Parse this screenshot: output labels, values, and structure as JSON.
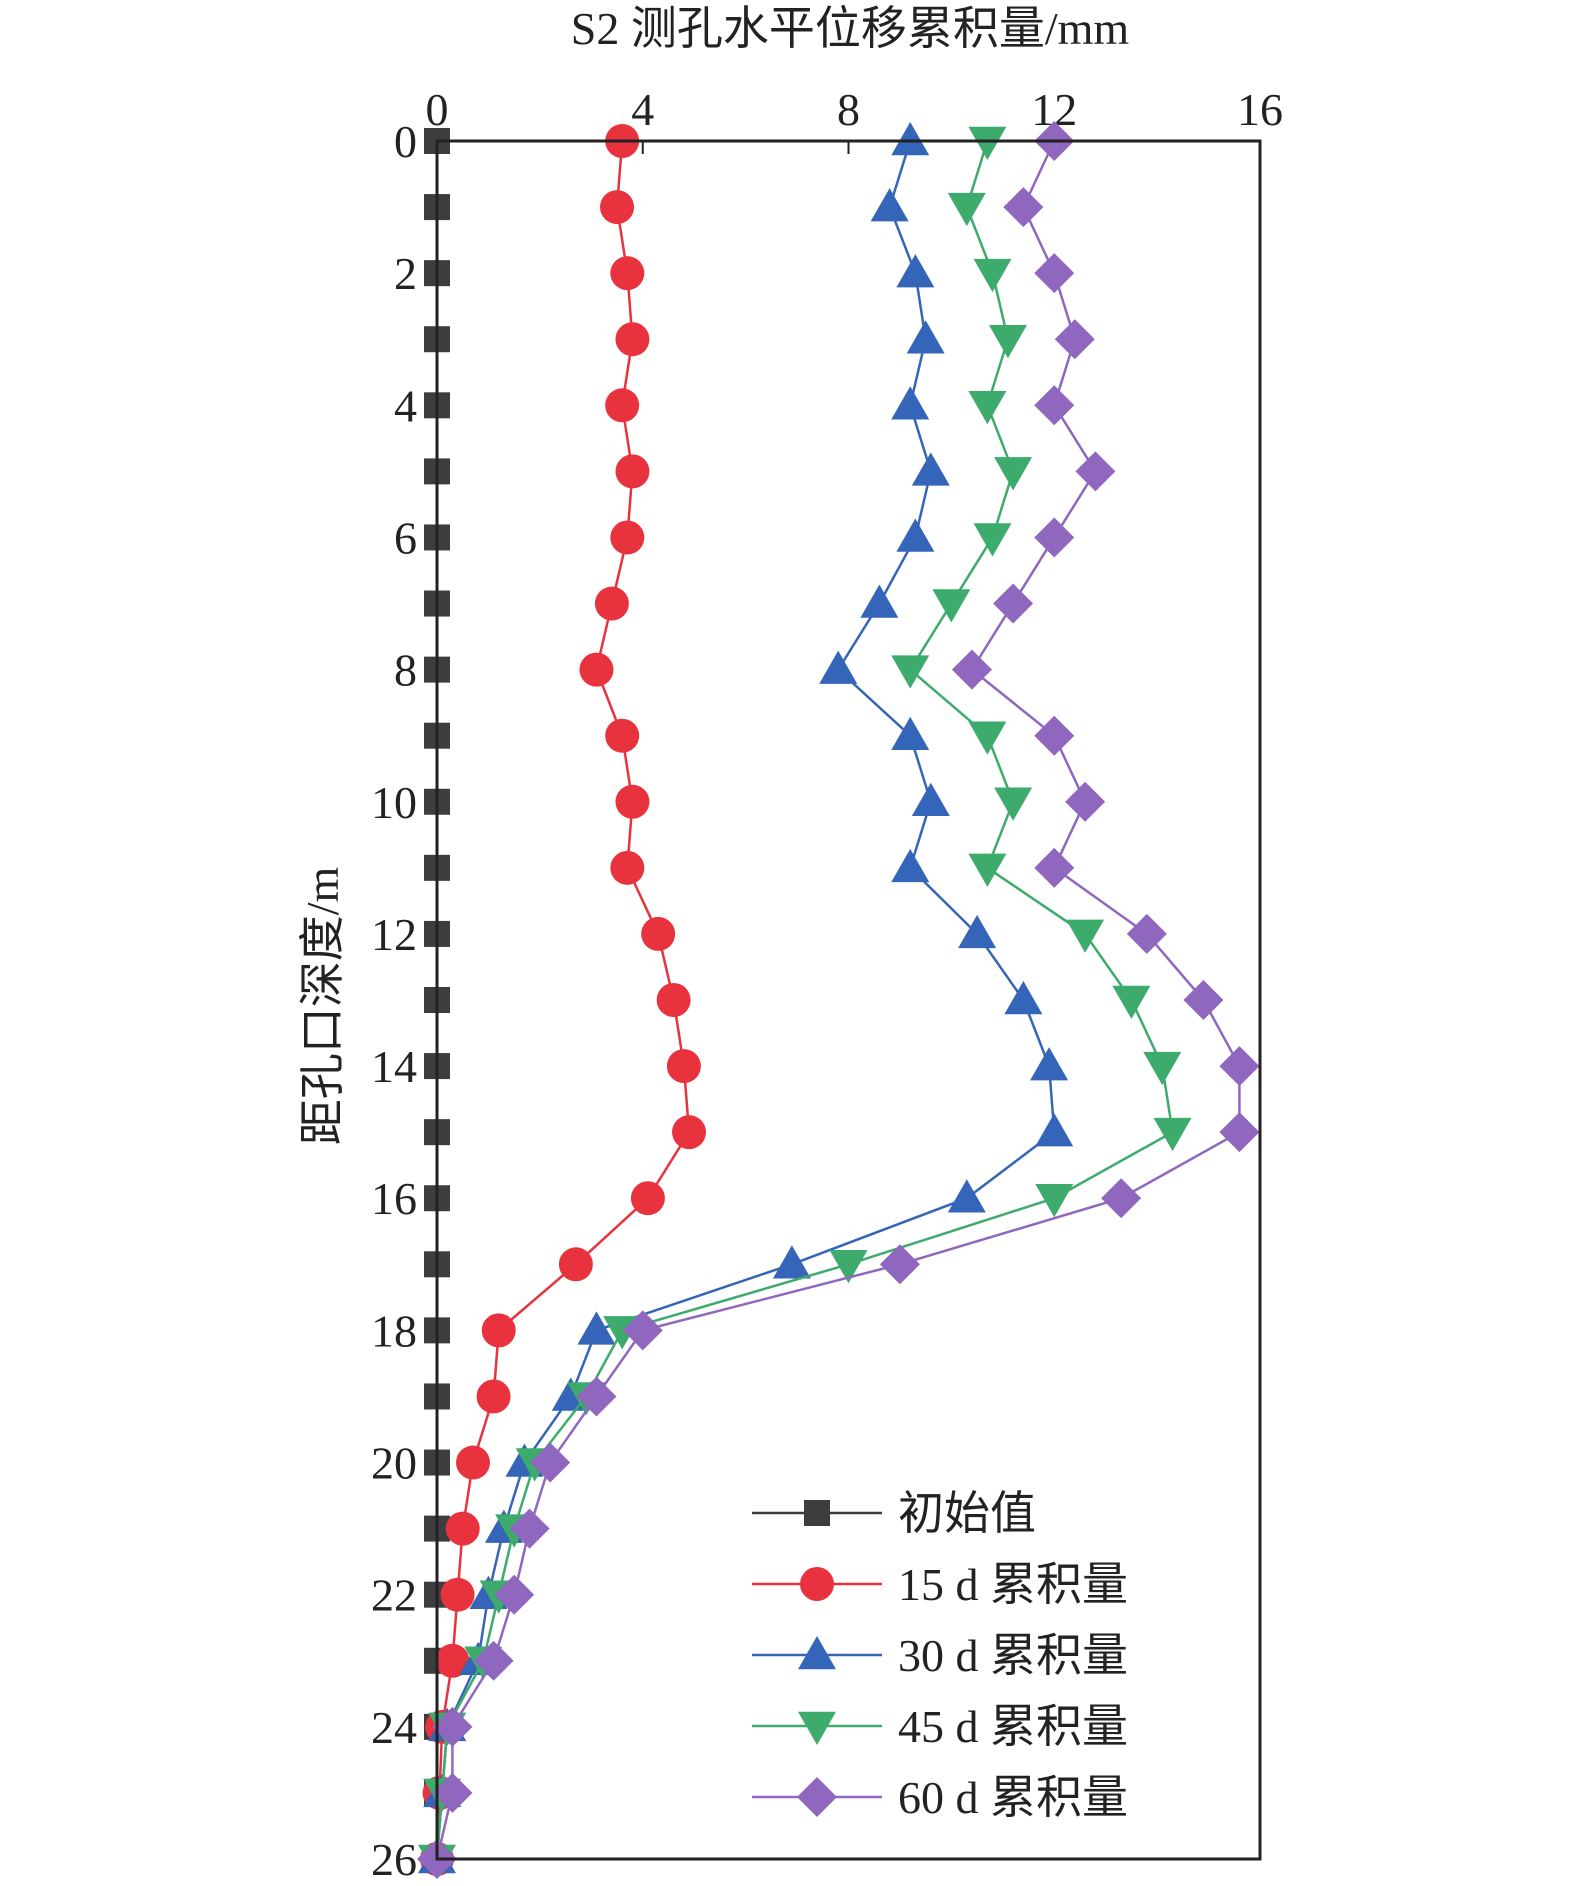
{
  "chart_data": {
    "type": "line",
    "title": "S2 测孔水平位移累积量/mm",
    "xlabel": "S2 测孔水平位移累积量/mm",
    "ylabel": "距孔口深度/m",
    "xlim": [
      0,
      16
    ],
    "ylim": [
      0,
      26
    ],
    "x_axis_position": "top",
    "y_axis_inverted": true,
    "x_ticks": [
      0,
      4,
      8,
      12,
      16
    ],
    "y_ticks": [
      0,
      2,
      4,
      6,
      8,
      10,
      12,
      14,
      16,
      18,
      20,
      22,
      24,
      26
    ],
    "legend_position": "bottom-right",
    "depth": [
      0,
      1,
      2,
      3,
      4,
      5,
      6,
      7,
      8,
      9,
      10,
      11,
      12,
      13,
      14,
      15,
      16,
      17,
      18,
      19,
      20,
      21,
      22,
      23,
      24,
      25,
      26
    ],
    "series": [
      {
        "name": "初始值",
        "marker": "square",
        "color": "#3d3d3f",
        "values": [
          0,
          0,
          0,
          0,
          0,
          0,
          0,
          0,
          0,
          0,
          0,
          0,
          0,
          0,
          0,
          0,
          0,
          0,
          0,
          0,
          0,
          0,
          0,
          0,
          0,
          0,
          0
        ]
      },
      {
        "name": "15 d 累积量",
        "marker": "circle",
        "color": "#e8333e",
        "values": [
          3.6,
          3.5,
          3.7,
          3.8,
          3.6,
          3.8,
          3.7,
          3.4,
          3.1,
          3.6,
          3.8,
          3.7,
          4.3,
          4.6,
          4.8,
          4.9,
          4.1,
          2.7,
          1.2,
          1.1,
          0.7,
          0.5,
          0.4,
          0.3,
          0.1,
          0.05,
          0
        ]
      },
      {
        "name": "30 d 累积量",
        "marker": "triangle-up",
        "color": "#3565b8",
        "values": [
          9.2,
          8.8,
          9.3,
          9.5,
          9.2,
          9.6,
          9.3,
          8.6,
          7.8,
          9.2,
          9.6,
          9.2,
          10.5,
          11.4,
          11.9,
          12.0,
          10.3,
          6.9,
          3.1,
          2.6,
          1.7,
          1.3,
          1.0,
          0.8,
          0.2,
          0.1,
          0
        ]
      },
      {
        "name": "45 d 累积量",
        "marker": "triangle-down",
        "color": "#3dab6c",
        "values": [
          10.7,
          10.3,
          10.8,
          11.1,
          10.7,
          11.2,
          10.8,
          10.0,
          9.2,
          10.7,
          11.2,
          10.7,
          12.6,
          13.5,
          14.1,
          14.3,
          12.0,
          8.0,
          3.6,
          2.9,
          1.9,
          1.5,
          1.2,
          0.9,
          0.2,
          0.1,
          0
        ]
      },
      {
        "name": "60 d 累积量",
        "marker": "diamond",
        "color": "#8f67bf",
        "values": [
          12.0,
          11.4,
          12.0,
          12.4,
          12.0,
          12.8,
          12.0,
          11.2,
          10.4,
          12.0,
          12.6,
          12.0,
          13.8,
          14.9,
          15.6,
          15.6,
          13.3,
          9.0,
          4.0,
          3.1,
          2.2,
          1.8,
          1.5,
          1.1,
          0.3,
          0.3,
          0
        ]
      }
    ]
  }
}
